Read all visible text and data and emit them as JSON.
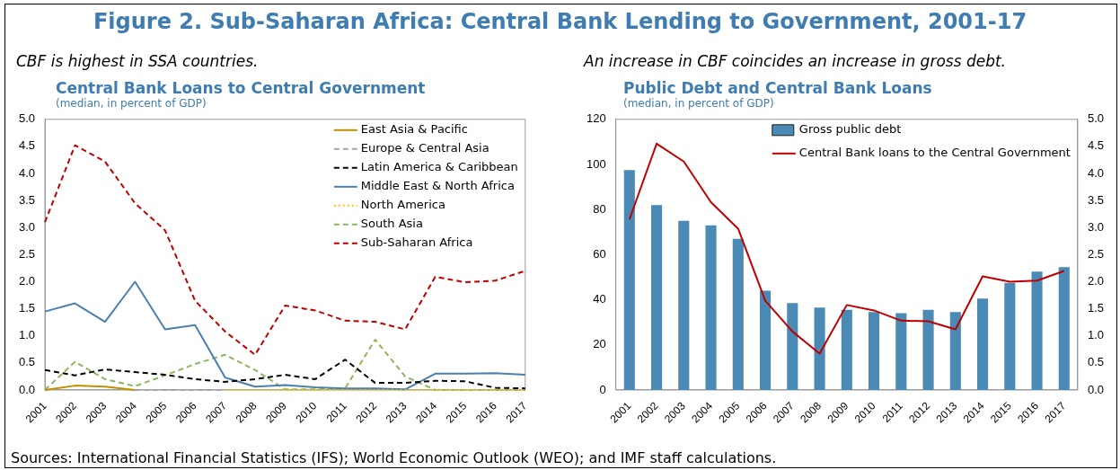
{
  "chart_data": [
    {
      "type": "line",
      "title": "Central Bank Loans to Central Government",
      "subtitle": "(median, in percent of GDP)",
      "annotations": [
        "Figure 2. Sub-Saharan Africa: Central Bank Lending to Government, 2001-17",
        "CBF is highest in SSA countries.",
        "Sources: International Financial Statistics (IFS); World Economic Outlook (WEO); and IMF staff calculations."
      ],
      "categories": [
        "2001",
        "2002",
        "2003",
        "2004",
        "2005",
        "2006",
        "2007",
        "2008",
        "2009",
        "2010",
        "2011",
        "2012",
        "2013",
        "2014",
        "2015",
        "2016",
        "2017"
      ],
      "ylim": [
        0,
        5
      ],
      "yticks": [
        {
          "value": 0,
          "label": "0.0"
        },
        {
          "value": 0.5,
          "label": "0.5"
        },
        {
          "value": 1,
          "label": "1.0"
        },
        {
          "value": 1.5,
          "label": "1.5"
        },
        {
          "value": 2,
          "label": "2.0"
        },
        {
          "value": 2.5,
          "label": "2.5"
        },
        {
          "value": 3,
          "label": "3.0"
        },
        {
          "value": 3.5,
          "label": "3.5"
        },
        {
          "value": 4,
          "label": "4.0"
        },
        {
          "value": 4.5,
          "label": "4.5"
        },
        {
          "value": 5,
          "label": "5.0"
        }
      ],
      "grid": false,
      "legend": "top right",
      "marker": "none",
      "series": [
        {
          "name": "East Asia & Pacific",
          "color": "#c09000",
          "line_style": "solid",
          "values": [
            0,
            0.08,
            0.06,
            0,
            null,
            null,
            null,
            null,
            null,
            null,
            null,
            null,
            null,
            null,
            null,
            null,
            null
          ]
        },
        {
          "name": "Europe & Central Asia",
          "color": "#a6a6a6",
          "line_style": "dashed",
          "values": [
            null,
            null,
            null,
            0,
            0,
            0,
            0,
            null,
            null,
            null,
            null,
            null,
            null,
            null,
            null,
            null,
            null
          ]
        },
        {
          "name": "Latin America & Caribbean",
          "color": "#000000",
          "line_style": "dashed",
          "values": [
            0.37,
            0.27,
            0.38,
            0.33,
            0.28,
            0.2,
            0.15,
            0.2,
            0.28,
            0.2,
            0.56,
            0.13,
            0.13,
            0.17,
            0.16,
            0.04,
            0.03
          ]
        },
        {
          "name": "Middle East & North Africa",
          "color": "#4a7fb0",
          "line_style": "solid",
          "values": [
            1.45,
            1.6,
            1.26,
            2.0,
            1.12,
            1.2,
            0.23,
            0.06,
            0.09,
            0.05,
            0.03,
            0.03,
            0.01,
            0.3,
            0.3,
            0.31,
            0.28
          ]
        },
        {
          "name": "North America",
          "color": "#ffc000",
          "line_style": "dotted",
          "values": [
            null,
            null,
            null,
            null,
            null,
            null,
            0,
            0,
            0,
            0,
            0,
            0,
            0,
            0,
            0,
            0,
            0
          ]
        },
        {
          "name": "South Asia",
          "color": "#8db65b",
          "line_style": "dashed",
          "values": [
            0,
            0.52,
            0.2,
            0.07,
            0.27,
            0.48,
            0.65,
            0.37,
            0.01,
            0.01,
            0.03,
            0.93,
            0.25,
            0,
            0,
            0,
            0
          ]
        },
        {
          "name": "Sub-Saharan Africa",
          "color": "#c00000",
          "line_style": "dashed",
          "values": [
            3.1,
            4.52,
            4.22,
            3.45,
            2.95,
            1.65,
            1.08,
            0.65,
            1.56,
            1.47,
            1.28,
            1.26,
            1.12,
            2.09,
            1.99,
            2.02,
            2.2
          ]
        }
      ]
    },
    {
      "type": "bar",
      "title": "Public Debt and Central Bank Loans",
      "subtitle": "(median, in percent of GDP)",
      "annotations": [
        "An increase in CBF coincides an increase in gross debt."
      ],
      "categories": [
        "2001",
        "2002",
        "2003",
        "2004",
        "2005",
        "2006",
        "2007",
        "2008",
        "2009",
        "2010",
        "2011",
        "2012",
        "2013",
        "2014",
        "2015",
        "2016",
        "2017"
      ],
      "ylim": [
        0,
        120
      ],
      "yticks": [
        0,
        20,
        40,
        60,
        80,
        100,
        120
      ],
      "y2lim": [
        0,
        5
      ],
      "y2ticks": [
        {
          "value": 0,
          "label": "0.0"
        },
        {
          "value": 0.5,
          "label": "0.5"
        },
        {
          "value": 1,
          "label": "1.0"
        },
        {
          "value": 1.5,
          "label": "1.5"
        },
        {
          "value": 2,
          "label": "2.0"
        },
        {
          "value": 2.5,
          "label": "2.5"
        },
        {
          "value": 3,
          "label": "3.0"
        },
        {
          "value": 3.5,
          "label": "3.5"
        },
        {
          "value": 4,
          "label": "4.0"
        },
        {
          "value": 4.5,
          "label": "4.5"
        },
        {
          "value": 5,
          "label": "5.0"
        }
      ],
      "grid": false,
      "legend": "top right",
      "marker": "none",
      "series": [
        {
          "name": "Gross public debt",
          "color": "#4a8ab4",
          "values": [
            97.5,
            82,
            75,
            73,
            67,
            44,
            38.5,
            36.5,
            35.5,
            34.5,
            34,
            35.5,
            34.5,
            40.5,
            47.5,
            52.5,
            54.5
          ]
        },
        {
          "name": "Central Bank loans to the Central Government",
          "color": "#c00000",
          "type": "line",
          "axis": "y2",
          "values": [
            3.15,
            4.55,
            4.22,
            3.47,
            2.98,
            1.65,
            1.08,
            0.67,
            1.57,
            1.47,
            1.28,
            1.27,
            1.12,
            2.1,
            2.0,
            2.02,
            2.2
          ]
        }
      ]
    }
  ]
}
